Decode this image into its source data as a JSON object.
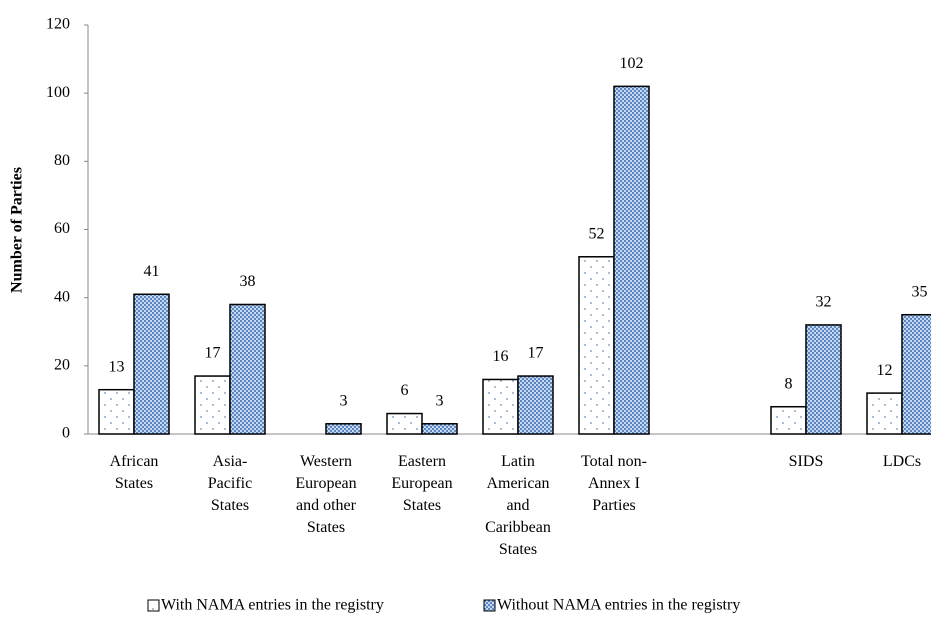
{
  "chart_data": {
    "type": "bar",
    "y_label": "Number of Parties",
    "categories": [
      "African\nStates",
      "Asia-\nPacific\nStates",
      "Western\nEuropean\nand other\nStates",
      "Eastern\nEuropean\nStates",
      "Latin\nAmerican\nand\nCaribbean\nStates",
      "Total non-\nAnnex I\nParties",
      null,
      "SIDS",
      "LDCs"
    ],
    "series": [
      {
        "name": "With NAMA entries in the registry",
        "color": "#ffffff",
        "values": [
          13,
          17,
          null,
          6,
          16,
          52,
          null,
          8,
          12
        ]
      },
      {
        "name": "Without NAMA entries in the registry",
        "color": "#9dbde6",
        "values": [
          41,
          38,
          3,
          3,
          17,
          102,
          null,
          32,
          35
        ]
      }
    ],
    "ylim": [
      0,
      120
    ],
    "yticks": [
      0,
      20,
      40,
      60,
      80,
      100,
      120
    ],
    "grid": false,
    "legend": "bottom"
  }
}
